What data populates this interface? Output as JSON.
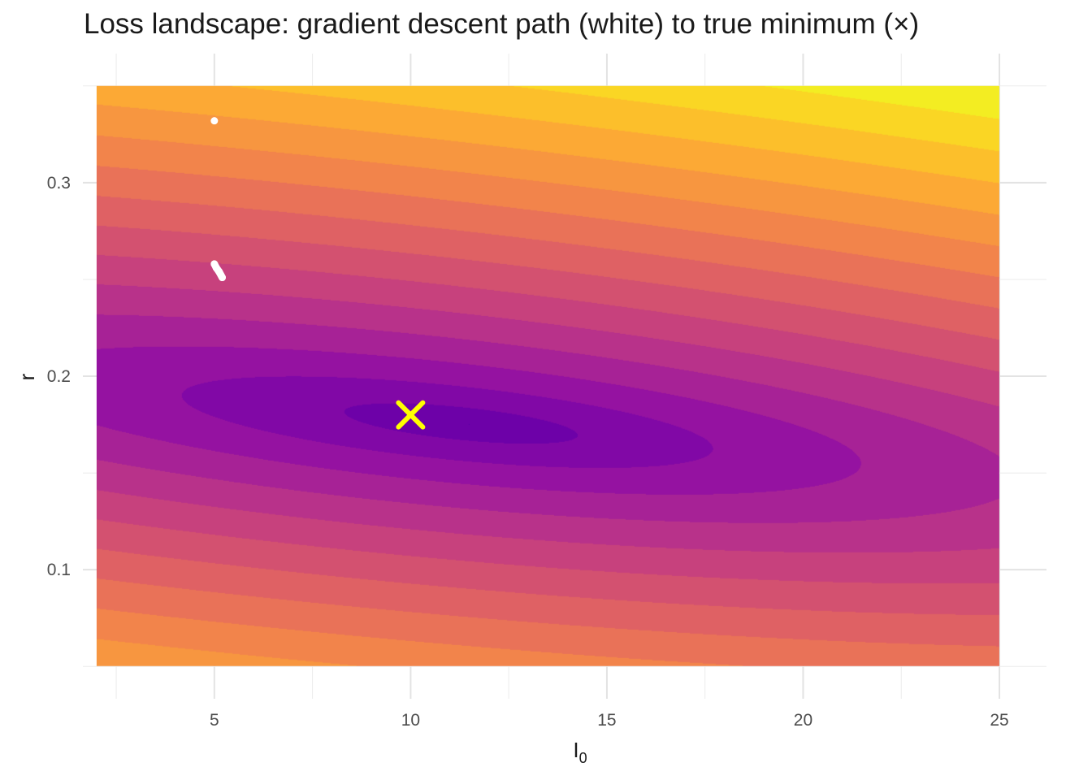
{
  "chart_data": {
    "type": "heatmap",
    "subtype": "filled-contour",
    "title": "Loss landscape: gradient descent path (white) to true minimum (×)",
    "xlabel": "I",
    "xlabel_subscript": "0",
    "ylabel": "r",
    "xlim": [
      2,
      25
    ],
    "ylim": [
      0.05,
      0.35
    ],
    "x_ticks": [
      5,
      10,
      15,
      20,
      25
    ],
    "x_tick_labels": [
      "5",
      "10",
      "15",
      "20",
      "25"
    ],
    "y_ticks": [
      0.1,
      0.2,
      0.3
    ],
    "y_tick_labels": [
      "0.1",
      "0.2",
      "0.3"
    ],
    "grid": true,
    "legend": "none",
    "colormap": "plasma",
    "contour_levels": 15,
    "surface_minimum": {
      "x": 11.5,
      "y": 0.175
    },
    "true_minimum": {
      "x": 10,
      "y": 0.18,
      "marker": "×",
      "color": "#ffff00"
    },
    "gradient_descent_path": [
      {
        "x": 5.0,
        "y": 0.332
      },
      {
        "x": 5.0,
        "y": 0.258
      },
      {
        "x": 5.05,
        "y": 0.256
      },
      {
        "x": 5.12,
        "y": 0.254
      },
      {
        "x": 5.2,
        "y": 0.251
      }
    ],
    "path_color": "#ffffff"
  }
}
